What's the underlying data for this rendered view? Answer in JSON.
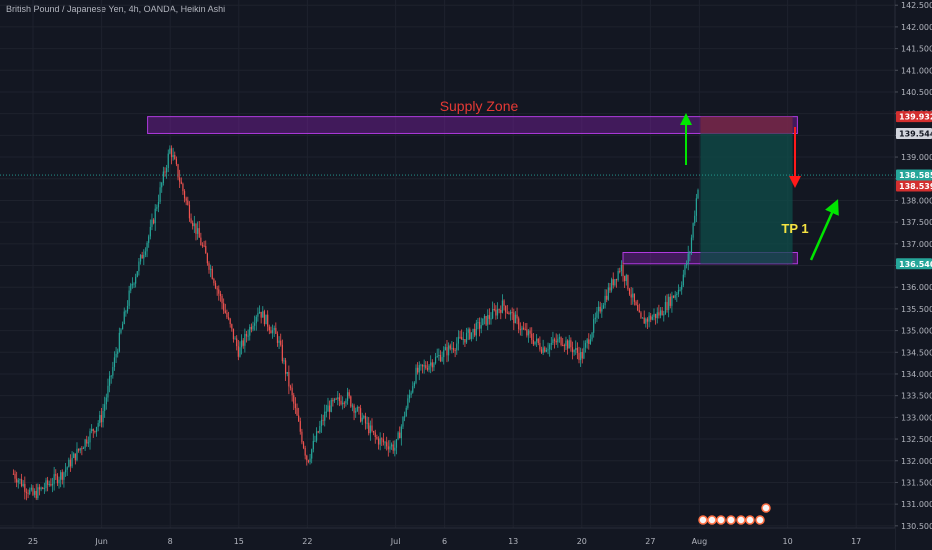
{
  "header": {
    "symbol": "British Pound / Japanese Yen, 4h, OANDA, Heikin Ashi"
  },
  "colors": {
    "background": "#131722",
    "bull": "#26a69a",
    "bear": "#ef5350",
    "zone_fill": "#7b1fa2",
    "zone_stroke": "#b03adf",
    "target_fill": "#0f4d4a",
    "stop_fill": "#7a2a3f",
    "arrow_green": "#00e600",
    "arrow_red": "#ff1a1a",
    "label_red": "#e53935",
    "label_yellow": "#f5e342"
  },
  "annotations": {
    "supply_zone": "Supply Zone",
    "tp": "TP 1"
  },
  "price_tags": [
    {
      "value": "139.932",
      "bg": "#d32f2f",
      "fg": "#ffffff",
      "price": 139.932
    },
    {
      "value": "139.544",
      "bg": "#d1d4dc",
      "fg": "#131722",
      "price": 139.544
    },
    {
      "value": "138.585",
      "bg": "#26a69a",
      "fg": "#ffffff",
      "price": 138.585
    },
    {
      "value": "138.539",
      "bg": "#d32f2f",
      "fg": "#ffffff",
      "price": 138.539
    },
    {
      "value": "136.540",
      "bg": "#26a69a",
      "fg": "#ffffff",
      "price": 136.54
    }
  ],
  "chart_data": {
    "type": "candlestick",
    "y_axis": {
      "range": [
        130.45,
        142.62
      ],
      "ticks": [
        "130.500",
        "131.000",
        "131.500",
        "132.000",
        "132.500",
        "133.000",
        "133.500",
        "134.000",
        "134.500",
        "135.000",
        "135.500",
        "136.000",
        "136.500",
        "137.000",
        "137.500",
        "138.000",
        "138.500",
        "139.000",
        "139.500",
        "140.000",
        "140.500",
        "141.000",
        "141.500",
        "142.000",
        "142.500"
      ]
    },
    "x_axis": {
      "ticks": [
        "25",
        "Jun",
        "8",
        "15",
        "22",
        "Jul",
        "6",
        "13",
        "20",
        "27",
        "Aug",
        "10",
        "17"
      ]
    },
    "grid": true,
    "price_path": [
      {
        "date": "May 23",
        "price": 131.7
      },
      {
        "date": "May 25",
        "price": 131.2
      },
      {
        "date": "May 28",
        "price": 131.7
      },
      {
        "date": "Jun 1",
        "price": 133.0
      },
      {
        "date": "Jun 4",
        "price": 136.0
      },
      {
        "date": "Jun 6",
        "price": 137.3
      },
      {
        "date": "Jun 8",
        "price": 139.2
      },
      {
        "date": "Jun 10",
        "price": 137.7
      },
      {
        "date": "Jun 12",
        "price": 136.5
      },
      {
        "date": "Jun 15",
        "price": 134.5
      },
      {
        "date": "Jun 17",
        "price": 135.5
      },
      {
        "date": "Jun 19",
        "price": 134.8
      },
      {
        "date": "Jun 22",
        "price": 132.0
      },
      {
        "date": "Jun 24",
        "price": 133.2
      },
      {
        "date": "Jun 26",
        "price": 133.5
      },
      {
        "date": "Jun 29",
        "price": 132.5
      },
      {
        "date": "Jul 1",
        "price": 132.3
      },
      {
        "date": "Jul 3",
        "price": 134.0
      },
      {
        "date": "Jul 6",
        "price": 134.5
      },
      {
        "date": "Jul 9",
        "price": 135.0
      },
      {
        "date": "Jul 12",
        "price": 135.6
      },
      {
        "date": "Jul 14",
        "price": 135.0
      },
      {
        "date": "Jul 16",
        "price": 134.6
      },
      {
        "date": "Jul 18",
        "price": 134.8
      },
      {
        "date": "Jul 20",
        "price": 134.4
      },
      {
        "date": "Jul 22",
        "price": 135.6
      },
      {
        "date": "Jul 24",
        "price": 136.5
      },
      {
        "date": "Jul 26",
        "price": 135.2
      },
      {
        "date": "Jul 28",
        "price": 135.4
      },
      {
        "date": "Jul 30",
        "price": 136.0
      },
      {
        "date": "Jul 31",
        "price": 136.8
      },
      {
        "date": "Aug 1",
        "price": 138.6
      }
    ],
    "supply_zone": {
      "price_top": 139.932,
      "price_bottom": 139.544,
      "date_start": "Jun 6",
      "date_end": "Aug 11"
    },
    "demand_zone": {
      "price_top": 136.8,
      "price_bottom": 136.54,
      "date_start": "Jul 24",
      "date_end": "Aug 11"
    },
    "position": {
      "entry": 139.544,
      "stop": 139.932,
      "target": 136.54,
      "date_start": "Aug 1",
      "date_end": "Aug 10"
    },
    "last_price": 138.585
  }
}
